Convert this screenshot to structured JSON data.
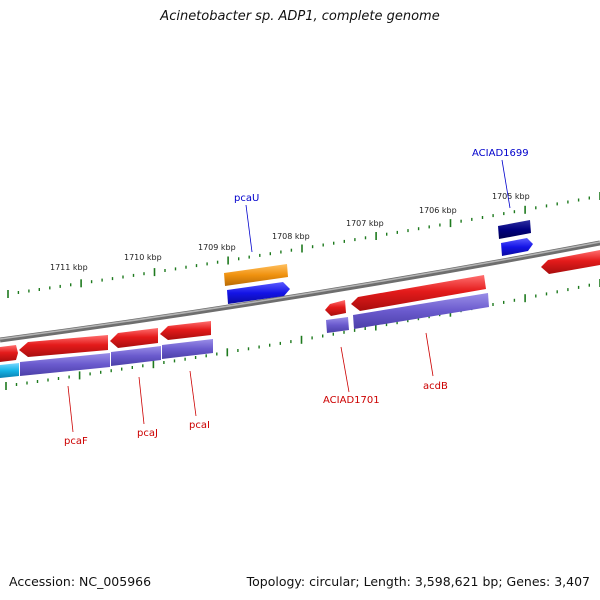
{
  "title": "Acinetobacter sp. ADP1, complete genome",
  "footer": {
    "accession": "Accession: NC_005966",
    "summary": "Topology: circular; Length: 3,598,621 bp; Genes: 3,407"
  },
  "colors": {
    "backbone": "#7a7a7a",
    "tick": "#1e7a1e",
    "gene_red": "#e41b1b",
    "gene_purple": "#6a5acd",
    "gene_orange": "#f0920f",
    "gene_blue": "#1414e6",
    "gene_navy": "#000080",
    "gene_cyan": "#14b4e6",
    "label_red": "#cc0000",
    "label_blue": "#0000cc"
  },
  "scale": {
    "kbp_labels": [
      "1711 kbp",
      "1710 kbp",
      "1709 kbp",
      "1708 kbp",
      "1707 kbp",
      "1706 kbp",
      "1705 kbp"
    ]
  },
  "gene_labels": [
    {
      "text": "pcaU",
      "color": "blue"
    },
    {
      "text": "ACIAD1699",
      "color": "blue"
    },
    {
      "text": "pcaF",
      "color": "red"
    },
    {
      "text": "pcaJ",
      "color": "red"
    },
    {
      "text": "pcaI",
      "color": "red"
    },
    {
      "text": "ACIAD1701",
      "color": "red"
    },
    {
      "text": "acdB",
      "color": "red"
    }
  ]
}
